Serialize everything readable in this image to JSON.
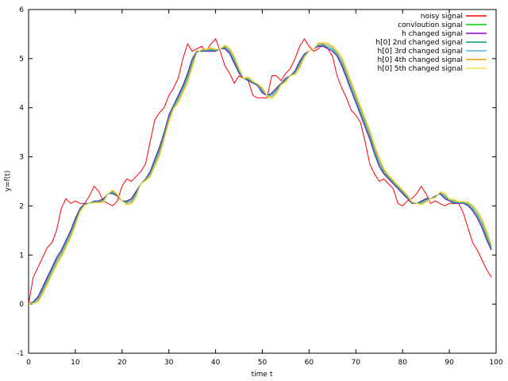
{
  "chart_data": {
    "type": "line",
    "title": "",
    "xlabel": "time t",
    "ylabel": "y=f(t)",
    "xlim": [
      0,
      100
    ],
    "ylim": [
      -1,
      6
    ],
    "xticks": [
      0,
      10,
      20,
      30,
      40,
      50,
      60,
      70,
      80,
      90,
      100
    ],
    "yticks": [
      -1,
      0,
      1,
      2,
      3,
      4,
      5,
      6
    ],
    "legend_position": "top-right",
    "grid": false,
    "x": [
      0,
      1,
      2,
      3,
      4,
      5,
      6,
      7,
      8,
      9,
      10,
      11,
      12,
      13,
      14,
      15,
      16,
      17,
      18,
      19,
      20,
      21,
      22,
      23,
      24,
      25,
      26,
      27,
      28,
      29,
      30,
      31,
      32,
      33,
      34,
      35,
      36,
      37,
      38,
      39,
      40,
      41,
      42,
      43,
      44,
      45,
      46,
      47,
      48,
      49,
      50,
      51,
      52,
      53,
      54,
      55,
      56,
      57,
      58,
      59,
      60,
      61,
      62,
      63,
      64,
      65,
      66,
      67,
      68,
      69,
      70,
      71,
      72,
      73,
      74,
      75,
      76,
      77,
      78,
      79,
      80,
      81,
      82,
      83,
      84,
      85,
      86,
      87,
      88,
      89,
      90,
      91,
      92,
      93,
      94,
      95,
      96,
      97,
      98,
      99
    ],
    "series": [
      {
        "name": "noisy signal",
        "color": "#ff0000",
        "values": [
          0.0,
          0.55,
          0.75,
          0.95,
          1.15,
          1.25,
          1.5,
          1.95,
          2.15,
          2.05,
          2.1,
          2.05,
          2.05,
          2.2,
          2.4,
          2.3,
          2.1,
          2.05,
          2.0,
          2.1,
          2.4,
          2.55,
          2.5,
          2.6,
          2.7,
          2.85,
          3.3,
          3.75,
          3.9,
          4.0,
          4.25,
          4.4,
          4.6,
          5.0,
          5.3,
          5.15,
          5.2,
          5.25,
          5.15,
          5.3,
          5.4,
          5.15,
          4.85,
          4.7,
          4.5,
          4.65,
          4.6,
          4.55,
          4.25,
          4.2,
          4.2,
          4.2,
          4.65,
          4.65,
          4.55,
          4.7,
          4.8,
          5.0,
          5.25,
          5.4,
          5.25,
          5.15,
          5.2,
          5.3,
          5.2,
          5.05,
          4.65,
          4.4,
          4.2,
          3.95,
          3.85,
          3.7,
          3.3,
          2.85,
          2.65,
          2.5,
          2.55,
          2.45,
          2.35,
          2.05,
          2.0,
          2.1,
          2.15,
          2.25,
          2.4,
          2.25,
          2.05,
          2.1,
          2.05,
          2.0,
          2.05,
          2.05,
          2.05,
          1.85,
          1.55,
          1.25,
          1.1,
          0.9,
          0.7,
          0.55
        ]
      },
      {
        "name": "convloution signal",
        "color": "#00cc00",
        "values": [
          0.0,
          0.05,
          0.15,
          0.35,
          0.55,
          0.75,
          0.95,
          1.1,
          1.3,
          1.5,
          1.75,
          1.95,
          2.05,
          2.05,
          2.1,
          2.1,
          2.15,
          2.25,
          2.25,
          2.2,
          2.1,
          2.1,
          2.15,
          2.3,
          2.45,
          2.55,
          2.7,
          2.95,
          3.2,
          3.5,
          3.85,
          4.05,
          4.25,
          4.45,
          4.7,
          5.0,
          5.15,
          5.15,
          5.15,
          5.15,
          5.15,
          5.2,
          5.2,
          5.1,
          4.9,
          4.7,
          4.6,
          4.55,
          4.5,
          4.45,
          4.3,
          4.25,
          4.3,
          4.4,
          4.5,
          4.6,
          4.65,
          4.75,
          4.95,
          5.1,
          5.15,
          5.2,
          5.25,
          5.25,
          5.2,
          5.15,
          5.05,
          4.85,
          4.6,
          4.35,
          4.1,
          3.85,
          3.6,
          3.35,
          3.05,
          2.8,
          2.65,
          2.55,
          2.45,
          2.35,
          2.25,
          2.15,
          2.05,
          2.05,
          2.1,
          2.15,
          2.15,
          2.2,
          2.25,
          2.15,
          2.1,
          2.05,
          2.05,
          2.05,
          2.0,
          1.9,
          1.75,
          1.55,
          1.3,
          1.1
        ]
      },
      {
        "name": "h changed signal",
        "color": "#9400d3",
        "values": [
          0.0,
          0.05,
          0.15,
          0.35,
          0.55,
          0.75,
          0.95,
          1.1,
          1.3,
          1.5,
          1.75,
          1.95,
          2.05,
          2.05,
          2.1,
          2.1,
          2.15,
          2.25,
          2.25,
          2.2,
          2.1,
          2.1,
          2.15,
          2.3,
          2.45,
          2.55,
          2.7,
          2.95,
          3.2,
          3.5,
          3.85,
          4.05,
          4.25,
          4.45,
          4.7,
          5.0,
          5.15,
          5.15,
          5.15,
          5.15,
          5.15,
          5.2,
          5.2,
          5.1,
          4.9,
          4.7,
          4.6,
          4.55,
          4.5,
          4.45,
          4.3,
          4.25,
          4.3,
          4.4,
          4.5,
          4.6,
          4.65,
          4.75,
          4.95,
          5.1,
          5.15,
          5.2,
          5.25,
          5.25,
          5.2,
          5.15,
          5.05,
          4.85,
          4.6,
          4.35,
          4.1,
          3.85,
          3.6,
          3.35,
          3.05,
          2.8,
          2.65,
          2.55,
          2.45,
          2.35,
          2.25,
          2.15,
          2.05,
          2.05,
          2.1,
          2.15,
          2.15,
          2.2,
          2.25,
          2.15,
          2.1,
          2.05,
          2.05,
          2.05,
          2.0,
          1.9,
          1.75,
          1.55,
          1.3,
          1.1
        ]
      },
      {
        "name": "h[0] 2nd changed signal",
        "color": "#009e73",
        "values": [
          0.0,
          0.04,
          0.12,
          0.31,
          0.51,
          0.71,
          0.91,
          1.06,
          1.26,
          1.46,
          1.71,
          1.93,
          2.04,
          2.05,
          2.09,
          2.09,
          2.13,
          2.25,
          2.27,
          2.21,
          2.1,
          2.08,
          2.12,
          2.27,
          2.45,
          2.54,
          2.67,
          2.91,
          3.15,
          3.46,
          3.81,
          4.03,
          4.21,
          4.41,
          4.65,
          4.95,
          5.14,
          5.16,
          5.16,
          5.17,
          5.16,
          5.2,
          5.22,
          5.13,
          4.94,
          4.73,
          4.6,
          4.57,
          4.51,
          4.46,
          4.33,
          4.25,
          4.27,
          4.37,
          4.49,
          4.58,
          4.65,
          4.73,
          4.91,
          5.08,
          5.15,
          5.2,
          5.27,
          5.27,
          5.23,
          5.18,
          5.08,
          4.9,
          4.65,
          4.4,
          4.15,
          3.9,
          3.65,
          3.4,
          3.1,
          2.85,
          2.68,
          2.57,
          2.47,
          2.37,
          2.27,
          2.17,
          2.06,
          2.05,
          2.08,
          2.13,
          2.15,
          2.19,
          2.26,
          2.18,
          2.11,
          2.07,
          2.06,
          2.06,
          2.02,
          1.93,
          1.79,
          1.6,
          1.35,
          1.13
        ]
      },
      {
        "name": "h[0] 3rd changed signal",
        "color": "#56b4e9",
        "values": [
          0.0,
          0.03,
          0.09,
          0.27,
          0.47,
          0.67,
          0.87,
          1.02,
          1.22,
          1.42,
          1.67,
          1.91,
          2.03,
          2.05,
          2.08,
          2.08,
          2.11,
          2.25,
          2.29,
          2.22,
          2.1,
          2.06,
          2.09,
          2.24,
          2.45,
          2.53,
          2.64,
          2.87,
          3.1,
          3.42,
          3.77,
          4.01,
          4.17,
          4.37,
          4.6,
          4.9,
          5.13,
          5.17,
          5.17,
          5.19,
          5.17,
          5.2,
          5.24,
          5.16,
          4.98,
          4.76,
          4.6,
          4.59,
          4.52,
          4.47,
          4.36,
          4.25,
          4.24,
          4.34,
          4.48,
          4.56,
          4.65,
          4.71,
          4.87,
          5.06,
          5.15,
          5.2,
          5.29,
          5.29,
          5.26,
          5.21,
          5.11,
          4.95,
          4.7,
          4.45,
          4.2,
          3.95,
          3.7,
          3.45,
          3.15,
          2.9,
          2.71,
          2.59,
          2.49,
          2.39,
          2.29,
          2.19,
          2.07,
          2.05,
          2.06,
          2.11,
          2.15,
          2.18,
          2.27,
          2.21,
          2.12,
          2.09,
          2.07,
          2.07,
          2.04,
          1.96,
          1.83,
          1.65,
          1.4,
          1.16
        ]
      },
      {
        "name": "h[0] 4th changed signal",
        "color": "#e69f00",
        "values": [
          0.0,
          0.02,
          0.06,
          0.23,
          0.43,
          0.63,
          0.83,
          0.98,
          1.18,
          1.38,
          1.63,
          1.89,
          2.02,
          2.05,
          2.07,
          2.07,
          2.09,
          2.25,
          2.31,
          2.23,
          2.1,
          2.04,
          2.06,
          2.21,
          2.45,
          2.52,
          2.61,
          2.83,
          3.05,
          3.38,
          3.73,
          3.99,
          4.13,
          4.33,
          4.55,
          4.85,
          5.12,
          5.18,
          5.18,
          5.21,
          5.18,
          5.2,
          5.26,
          5.19,
          5.02,
          4.79,
          4.6,
          4.61,
          4.53,
          4.48,
          4.39,
          4.25,
          4.21,
          4.31,
          4.47,
          4.54,
          4.65,
          4.69,
          4.83,
          5.04,
          5.15,
          5.2,
          5.31,
          5.31,
          5.29,
          5.24,
          5.14,
          5.0,
          4.75,
          4.5,
          4.25,
          4.0,
          3.75,
          3.5,
          3.2,
          2.95,
          2.74,
          2.61,
          2.51,
          2.41,
          2.31,
          2.21,
          2.08,
          2.05,
          2.04,
          2.09,
          2.15,
          2.17,
          2.28,
          2.24,
          2.13,
          2.11,
          2.08,
          2.08,
          2.06,
          1.99,
          1.87,
          1.7,
          1.45,
          1.19
        ]
      },
      {
        "name": "h[0] 5th changed signal",
        "color": "#f0e442",
        "values": [
          0.0,
          0.01,
          0.03,
          0.19,
          0.39,
          0.59,
          0.79,
          0.94,
          1.14,
          1.34,
          1.59,
          1.87,
          2.01,
          2.05,
          2.06,
          2.06,
          2.07,
          2.25,
          2.33,
          2.24,
          2.1,
          2.02,
          2.03,
          2.18,
          2.45,
          2.51,
          2.58,
          2.79,
          3.0,
          3.34,
          3.69,
          3.97,
          4.09,
          4.29,
          4.5,
          4.8,
          5.11,
          5.19,
          5.19,
          5.23,
          5.19,
          5.2,
          5.28,
          5.22,
          5.06,
          4.82,
          4.6,
          4.63,
          4.54,
          4.49,
          4.42,
          4.25,
          4.18,
          4.28,
          4.46,
          4.52,
          4.65,
          4.67,
          4.79,
          5.02,
          5.15,
          5.2,
          5.33,
          5.33,
          5.32,
          5.27,
          5.17,
          5.05,
          4.8,
          4.55,
          4.3,
          4.05,
          3.8,
          3.55,
          3.25,
          3.0,
          2.77,
          2.63,
          2.53,
          2.43,
          2.33,
          2.23,
          2.09,
          2.05,
          2.02,
          2.07,
          2.15,
          2.16,
          2.29,
          2.27,
          2.14,
          2.13,
          2.09,
          2.09,
          2.08,
          2.02,
          1.91,
          1.75,
          1.5,
          1.22
        ]
      }
    ]
  }
}
